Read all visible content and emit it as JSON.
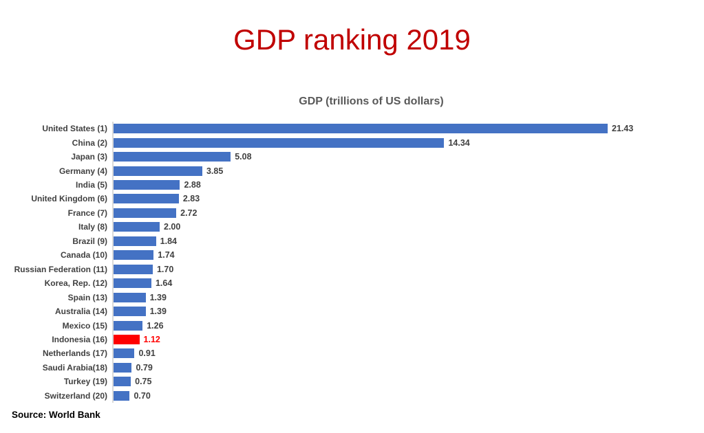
{
  "title": {
    "text": "GDP ranking 2019",
    "color": "#C00000"
  },
  "source": {
    "text": "Source: World Bank"
  },
  "chart_data": {
    "type": "bar",
    "orientation": "horizontal",
    "title": "GDP (trillions of US dollars)",
    "categories": [
      "United States (1)",
      "China (2)",
      "Japan (3)",
      "Germany (4)",
      "India (5)",
      "United Kingdom (6)",
      "France (7)",
      "Italy (8)",
      "Brazil (9)",
      "Canada (10)",
      "Russian Federation (11)",
      "Korea, Rep. (12)",
      "Spain (13)",
      "Australia (14)",
      "Mexico (15)",
      "Indonesia (16)",
      "Netherlands (17)",
      "Saudi Arabia(18)",
      "Turkey (19)",
      "Switzerland (20)"
    ],
    "values": [
      21.43,
      14.34,
      5.08,
      3.85,
      2.88,
      2.83,
      2.72,
      2.0,
      1.84,
      1.74,
      1.7,
      1.64,
      1.39,
      1.39,
      1.26,
      1.12,
      0.91,
      0.79,
      0.75,
      0.7
    ],
    "decimals": 2,
    "xlim": [
      0,
      21.43
    ],
    "highlight_index": 15,
    "bar_color": "#4472C4",
    "highlight_color": "#FF0000",
    "highlight_label_color": "#FF0000",
    "label_color": "#404040",
    "axis_color": "#D9D9D9",
    "grid": false,
    "legend": false
  }
}
